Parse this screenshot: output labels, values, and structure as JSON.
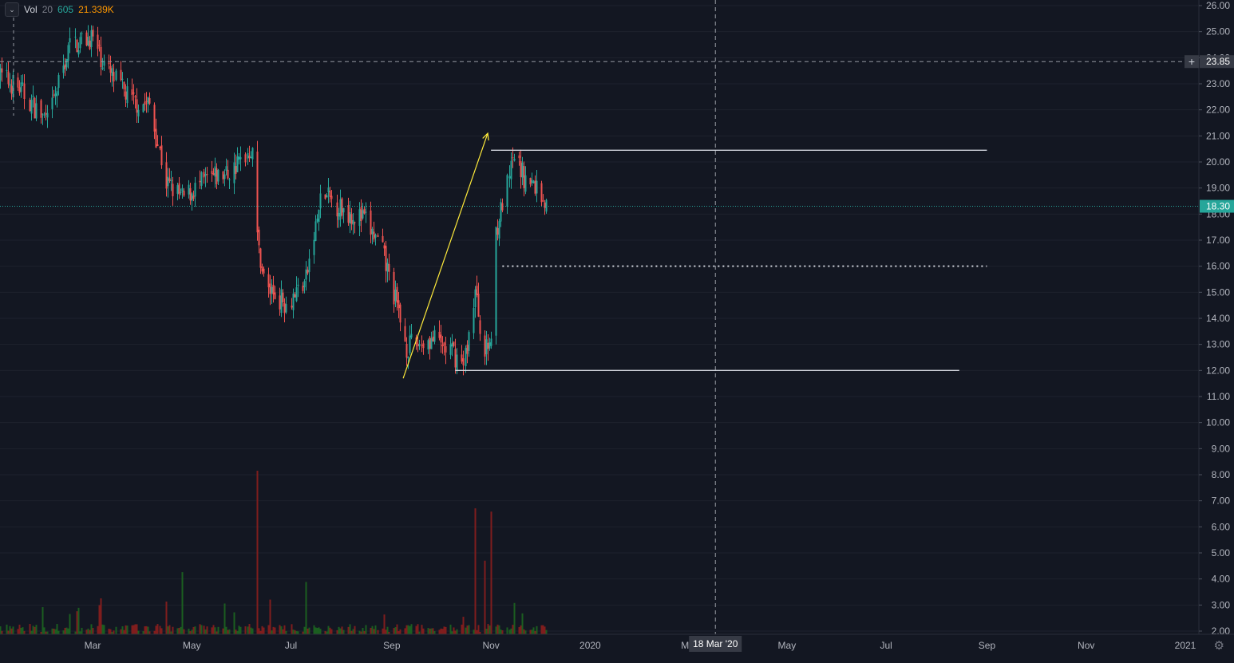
{
  "legend": {
    "collapse_icon": "chevron-down-icon",
    "indicator": "Vol",
    "length": "20",
    "volume": "605",
    "volume_ma": "21.339K"
  },
  "colors": {
    "background": "#131722",
    "grid": "#1e222d",
    "up": "#26a69a",
    "down": "#ef5350",
    "volume_up": "#1b5e20",
    "volume_down": "#7f1d1d",
    "text": "#d1d4dc",
    "axis_text": "#b2b5be",
    "last_price_line": "#26a69a",
    "trend_arrow": "#ffeb3b",
    "horizontal_line": "#d1d4dc"
  },
  "crosshair": {
    "price_label": "23.85",
    "date_label": "18 Mar '20",
    "date": "2020-03-18",
    "price": 23.85
  },
  "last_price": {
    "label": "18.30",
    "value": 18.3
  },
  "chart_data": {
    "type": "candlestick",
    "ylim": [
      2.0,
      26.0
    ],
    "y_ticks": [
      "2.00",
      "3.00",
      "4.00",
      "5.00",
      "6.00",
      "7.00",
      "8.00",
      "9.00",
      "10.00",
      "11.00",
      "12.00",
      "13.00",
      "14.00",
      "15.00",
      "16.00",
      "17.00",
      "18.00",
      "19.00",
      "20.00",
      "21.00",
      "22.00",
      "23.00",
      "24.00",
      "25.00",
      "26.00"
    ],
    "x_labels": [
      {
        "label": "Mar",
        "date": "2019-03-01"
      },
      {
        "label": "May",
        "date": "2019-05-01"
      },
      {
        "label": "Jul",
        "date": "2019-07-01"
      },
      {
        "label": "Sep",
        "date": "2019-09-01"
      },
      {
        "label": "Nov",
        "date": "2019-11-01"
      },
      {
        "label": "2020",
        "date": "2020-01-01"
      },
      {
        "label": "Ma",
        "date": "2020-03-01"
      },
      {
        "label": "May",
        "date": "2020-05-01"
      },
      {
        "label": "Jul",
        "date": "2020-07-01"
      },
      {
        "label": "Sep",
        "date": "2020-09-01"
      },
      {
        "label": "Nov",
        "date": "2020-11-01"
      },
      {
        "label": "2021",
        "date": "2021-01-01"
      }
    ],
    "price_path": [
      {
        "date": "2019-01-01",
        "close": 23.4
      },
      {
        "date": "2019-01-15",
        "close": 22.8
      },
      {
        "date": "2019-02-01",
        "close": 21.5
      },
      {
        "date": "2019-02-15",
        "close": 24.5
      },
      {
        "date": "2019-02-28",
        "close": 24.8
      },
      {
        "date": "2019-03-10",
        "close": 23.5
      },
      {
        "date": "2019-03-25",
        "close": 22.3
      },
      {
        "date": "2019-04-05",
        "close": 22.2
      },
      {
        "date": "2019-04-15",
        "close": 19.2
      },
      {
        "date": "2019-04-25",
        "close": 18.6
      },
      {
        "date": "2019-05-10",
        "close": 19.3
      },
      {
        "date": "2019-05-25",
        "close": 19.6
      },
      {
        "date": "2019-06-07",
        "close": 20.6
      },
      {
        "date": "2019-06-10",
        "close": 17.0
      },
      {
        "date": "2019-06-15",
        "close": 15.2
      },
      {
        "date": "2019-06-28",
        "close": 14.6
      },
      {
        "date": "2019-07-10",
        "close": 15.5
      },
      {
        "date": "2019-07-20",
        "close": 18.8
      },
      {
        "date": "2019-08-01",
        "close": 18.2
      },
      {
        "date": "2019-08-15",
        "close": 17.8
      },
      {
        "date": "2019-08-25",
        "close": 16.7
      },
      {
        "date": "2019-09-01",
        "close": 15.2
      },
      {
        "date": "2019-09-10",
        "close": 12.9
      },
      {
        "date": "2019-09-25",
        "close": 13.2
      },
      {
        "date": "2019-10-08",
        "close": 12.7
      },
      {
        "date": "2019-10-15",
        "close": 12.2
      },
      {
        "date": "2019-10-22",
        "close": 15.0
      },
      {
        "date": "2019-10-28",
        "close": 12.6
      },
      {
        "date": "2019-11-01",
        "close": 13.3
      },
      {
        "date": "2019-11-03",
        "close": 17.2
      },
      {
        "date": "2019-11-10",
        "close": 18.8
      },
      {
        "date": "2019-11-15",
        "close": 20.2
      },
      {
        "date": "2019-11-22",
        "close": 19.3
      },
      {
        "date": "2019-11-30",
        "close": 19.0
      },
      {
        "date": "2019-12-05",
        "close": 18.3
      }
    ],
    "volume_spikes": [
      {
        "date": "2019-06-10",
        "volume_rel": 1.0,
        "direction": "down"
      },
      {
        "date": "2019-09-01",
        "volume_rel": 0.45,
        "direction": "down"
      },
      {
        "date": "2019-10-22",
        "volume_rel": 0.77,
        "direction": "down"
      },
      {
        "date": "2019-11-01",
        "volume_rel": 0.75,
        "direction": "down"
      },
      {
        "date": "2019-10-28",
        "volume_rel": 0.45,
        "direction": "down"
      },
      {
        "date": "2019-04-15",
        "volume_rel": 0.2,
        "direction": "down"
      },
      {
        "date": "2019-07-10",
        "volume_rel": 0.32,
        "direction": "up"
      },
      {
        "date": "2019-04-25",
        "volume_rel": 0.38,
        "direction": "up"
      }
    ],
    "drawings": [
      {
        "kind": "horizontal-line",
        "price": 20.45,
        "from": "2019-11-01",
        "to": "2020-09-01",
        "style": "solid"
      },
      {
        "kind": "horizontal-line",
        "price": 12.0,
        "from": "2019-10-10",
        "to": "2020-08-15",
        "style": "solid"
      },
      {
        "kind": "horizontal-line",
        "price": 16.0,
        "from": "2019-11-08",
        "to": "2020-09-01",
        "style": "dotted"
      },
      {
        "kind": "arrow",
        "from_date": "2019-09-08",
        "from_price": 11.7,
        "to_date": "2019-10-30",
        "to_price": 21.1
      }
    ]
  }
}
